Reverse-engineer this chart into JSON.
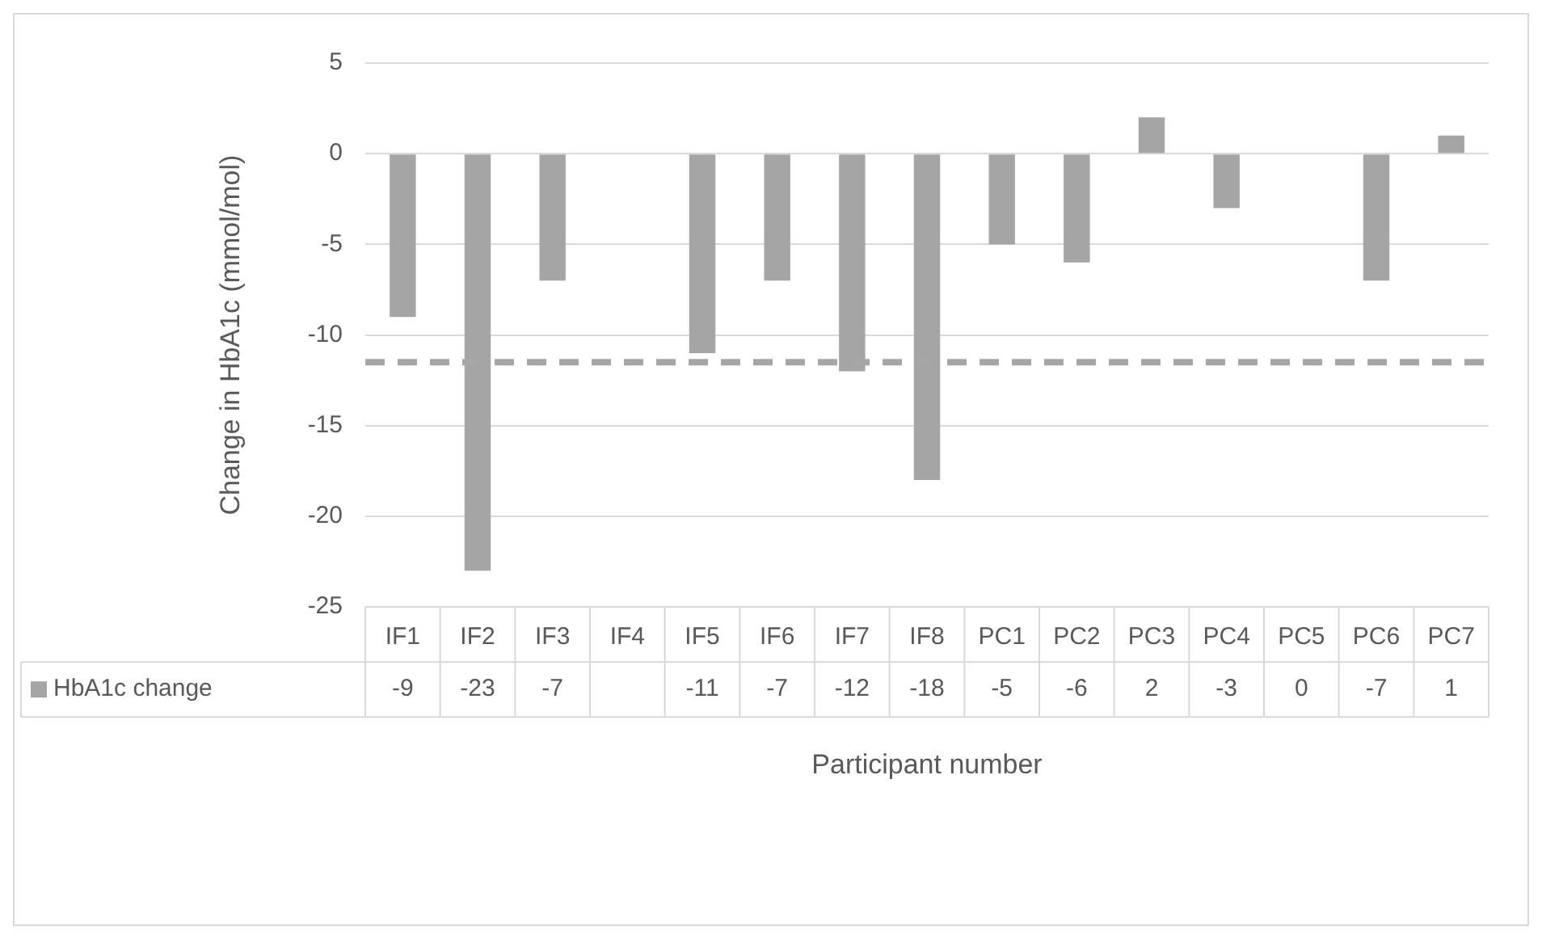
{
  "chart_data": {
    "type": "bar",
    "xlabel": "Participant number",
    "ylabel": "Change in HbA1c (mmol/mol)",
    "categories": [
      "IF1",
      "IF2",
      "IF3",
      "IF4",
      "IF5",
      "IF6",
      "IF7",
      "IF8",
      "PC1",
      "PC2",
      "PC3",
      "PC4",
      "PC5",
      "PC6",
      "PC7"
    ],
    "series": [
      {
        "name": "HbA1c change",
        "color": "#a5a5a5",
        "values": [
          -9,
          -23,
          -7,
          null,
          -11,
          -7,
          -12,
          -18,
          -5,
          -6,
          2,
          -3,
          0,
          -7,
          1
        ]
      }
    ],
    "ylim": [
      -25,
      5
    ],
    "yticks": [
      -25,
      -20,
      -15,
      -10,
      -5,
      0,
      5
    ],
    "grid": "y",
    "legend": "bottom",
    "data_labels": true,
    "ref_lines": [
      {
        "axis": "y",
        "value": -11.5,
        "color": "#a6a6a6",
        "line_style": "dashed"
      }
    ]
  }
}
